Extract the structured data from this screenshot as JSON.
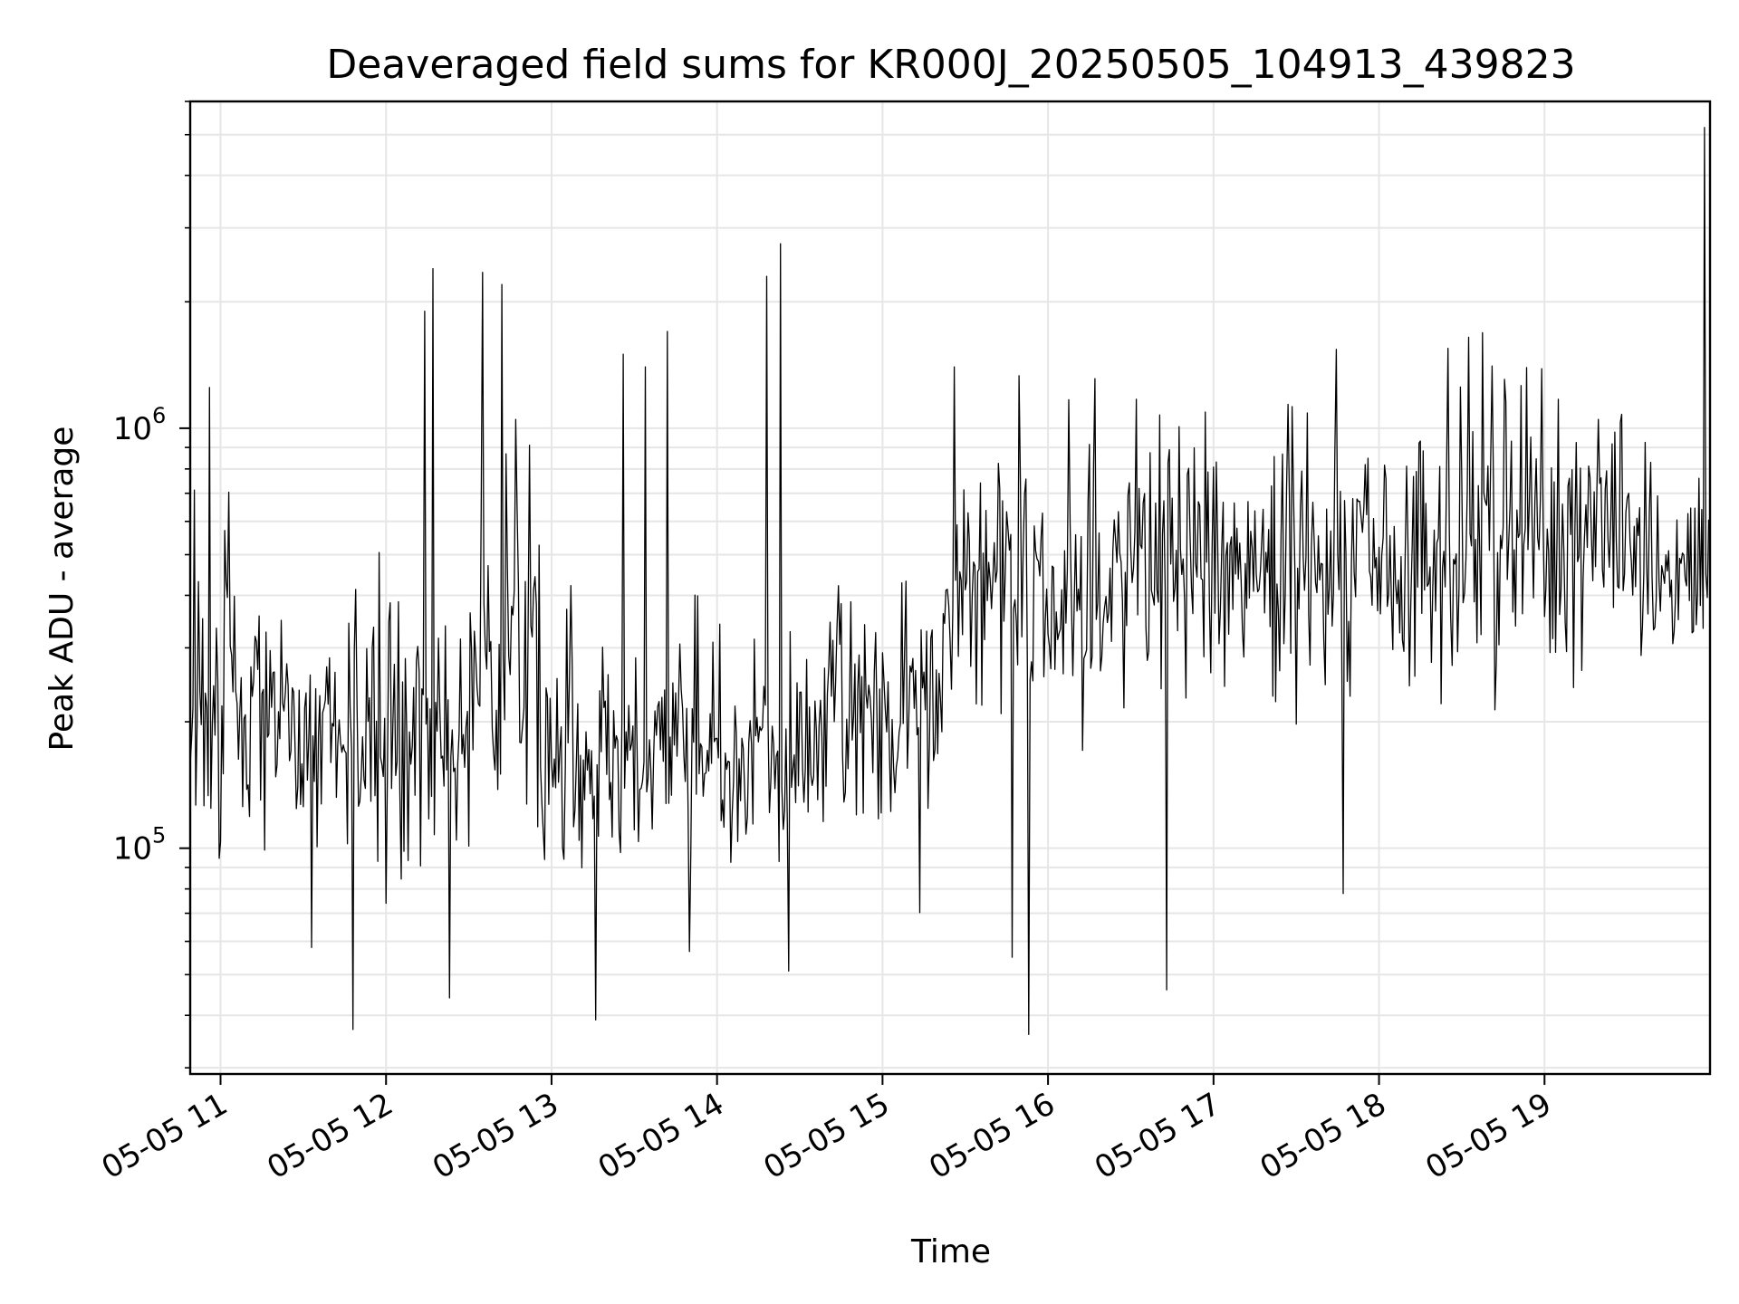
{
  "chart_data": {
    "type": "line",
    "title": "Deaveraged field sums for KR000J_20250505_104913_439823",
    "xlabel": "Time",
    "ylabel": "Peak ADU - average",
    "yscale": "log",
    "grid": true,
    "line_color": "#000000",
    "xlim": [
      "2025-05-05 10:49",
      "2025-05-05 20:00"
    ],
    "ylim": [
      29000,
      6000000
    ],
    "x_ticks": [
      "05-05 11",
      "05-05 12",
      "05-05 13",
      "05-05 14",
      "05-05 15",
      "05-05 16",
      "05-05 17",
      "05-05 18",
      "05-05 19"
    ],
    "y_ticks": [
      {
        "base": "10",
        "exp": "5",
        "value": 100000
      },
      {
        "base": "10",
        "exp": "6",
        "value": 1000000
      }
    ],
    "series": [
      {
        "sample_interval_minutes": 0.5,
        "segments": [
          {
            "from": "2025-05-05 10:49",
            "to": "2025-05-05 11:15",
            "level": 210000,
            "sigma": 0.42
          },
          {
            "from": "2025-05-05 11:15",
            "to": "2025-05-05 12:30",
            "level": 185000,
            "sigma": 0.33
          },
          {
            "from": "2025-05-05 12:30",
            "to": "2025-05-05 12:55",
            "level": 300000,
            "sigma": 0.5
          },
          {
            "from": "2025-05-05 12:55",
            "to": "2025-05-05 14:40",
            "level": 170000,
            "sigma": 0.33
          },
          {
            "from": "2025-05-05 14:40",
            "to": "2025-05-05 15:22",
            "level": 220000,
            "sigma": 0.33
          },
          {
            "from": "2025-05-05 15:22",
            "to": "2025-05-05 16:30",
            "level": 420000,
            "sigma": 0.35
          },
          {
            "from": "2025-05-05 16:30",
            "to": "2025-05-05 18:00",
            "level": 480000,
            "sigma": 0.38
          },
          {
            "from": "2025-05-05 18:00",
            "to": "2025-05-05 19:40",
            "level": 520000,
            "sigma": 0.38
          },
          {
            "from": "2025-05-05 19:40",
            "to": "2025-05-05 20:00",
            "level": 420000,
            "sigma": 0.3
          }
        ],
        "peaks": [
          {
            "t": "2025-05-05 10:56",
            "y": 1250000
          },
          {
            "t": "2025-05-05 12:14",
            "y": 1900000
          },
          {
            "t": "2025-05-05 12:17",
            "y": 2400000
          },
          {
            "t": "2025-05-05 12:35",
            "y": 2350000
          },
          {
            "t": "2025-05-05 12:42",
            "y": 2200000
          },
          {
            "t": "2025-05-05 12:47",
            "y": 1050000
          },
          {
            "t": "2025-05-05 13:26",
            "y": 1500000
          },
          {
            "t": "2025-05-05 13:34",
            "y": 1400000
          },
          {
            "t": "2025-05-05 13:42",
            "y": 1700000
          },
          {
            "t": "2025-05-05 14:18",
            "y": 2300000
          },
          {
            "t": "2025-05-05 14:23",
            "y": 2750000
          },
          {
            "t": "2025-05-05 15:26",
            "y": 1400000
          },
          {
            "t": "2025-05-05 18:25",
            "y": 1550000
          },
          {
            "t": "2025-05-05 19:58",
            "y": 5200000
          }
        ],
        "dips": [
          {
            "t": "2025-05-05 11:48",
            "y": 37000
          },
          {
            "t": "2025-05-05 12:23",
            "y": 44000
          },
          {
            "t": "2025-05-05 13:16",
            "y": 39000
          },
          {
            "t": "2025-05-05 14:26",
            "y": 51000
          },
          {
            "t": "2025-05-05 15:53",
            "y": 36000
          },
          {
            "t": "2025-05-05 16:43",
            "y": 46000
          },
          {
            "t": "2025-05-05 11:33",
            "y": 58000
          },
          {
            "t": "2025-05-05 15:47",
            "y": 55000
          },
          {
            "t": "2025-05-05 17:47",
            "y": 78000
          }
        ]
      }
    ]
  }
}
